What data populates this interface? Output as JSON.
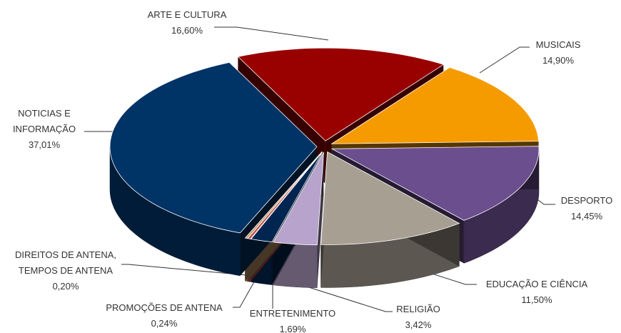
{
  "chart_data": {
    "type": "pie3d",
    "categories": [
      "ARTE E CULTURA",
      "MUSICAIS",
      "DESPORTO",
      "EDUCAÇÃO E CIÊNCIA",
      "RELIGIÃO",
      "ENTRETENIMENTO",
      "PROMOÇÕES DE ANTENA",
      "DIREITOS DE ANTENA, TEMPOS DE ANTENA",
      "NOTICIAS E INFORMAÇÃO"
    ],
    "values": [
      16.6,
      14.9,
      14.45,
      11.5,
      3.42,
      1.69,
      0.24,
      0.2,
      37.01
    ],
    "value_labels": [
      "16,60%",
      "14,90%",
      "14,45%",
      "11,50%",
      "3,42%",
      "1,69%",
      "0,24%",
      "0,20%",
      "37,01%"
    ],
    "colors": [
      "#990000",
      "#f59b00",
      "#6b4e8e",
      "#a89f93",
      "#b7a3cc",
      "#002550",
      "#c0504d",
      "#c49a6c",
      "#003366"
    ]
  }
}
